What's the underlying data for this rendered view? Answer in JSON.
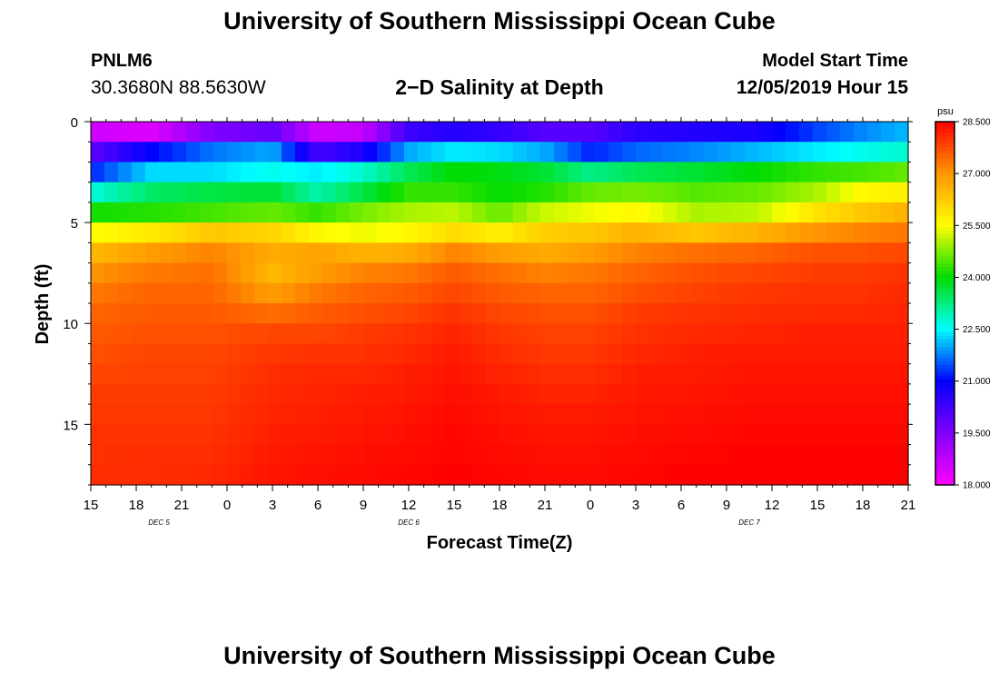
{
  "header": {
    "title": "University of Southern Mississippi Ocean Cube",
    "station_id": "PNLM6",
    "coords": "30.3680N 88.5630W",
    "chart_title": "2−D Salinity at Depth",
    "model_start_label": "Model Start Time",
    "model_start_value": "12/05/2019 Hour 15"
  },
  "footer": {
    "title": "University of Southern Mississippi Ocean Cube"
  },
  "chart_data": {
    "type": "heatmap",
    "title": "2−D Salinity at Depth",
    "xlabel": "Forecast Time(Z)",
    "ylabel": "Depth (ft)",
    "x_hours": [
      0,
      54
    ],
    "x_tick_labels": [
      "15",
      "18",
      "21",
      "0",
      "3",
      "6",
      "9",
      "12",
      "15",
      "18",
      "21",
      "0",
      "3",
      "6",
      "9",
      "12",
      "15",
      "18",
      "21"
    ],
    "date_labels": [
      {
        "label": "DEC 5",
        "hour": 4.5
      },
      {
        "label": "DEC 6",
        "hour": 21
      },
      {
        "label": "DEC 7",
        "hour": 43.5
      }
    ],
    "ylim": [
      18,
      0
    ],
    "y_ticks": [
      0,
      5,
      10,
      15
    ],
    "z_layers": 18,
    "colorbar": {
      "unit": "psu",
      "min": 18.0,
      "max": 28.5,
      "tick_labels": [
        "18.000",
        "19.500",
        "21.000",
        "22.500",
        "24.000",
        "25.500",
        "27.000",
        "28.500"
      ]
    },
    "salinity_profiles": [
      {
        "hour": 0,
        "values": [
          18.6,
          19.9,
          21.2,
          22.7,
          24.1,
          25.5,
          26.5,
          27.0,
          27.3,
          27.5,
          27.6,
          27.7,
          27.8,
          27.9,
          27.95,
          28.0,
          28.0,
          28.05
        ]
      },
      {
        "hour": 4,
        "values": [
          18.4,
          21.0,
          22.3,
          23.4,
          24.2,
          25.8,
          26.9,
          27.3,
          27.5,
          27.6,
          27.7,
          27.8,
          27.85,
          27.9,
          27.95,
          28.0,
          28.05,
          28.05
        ]
      },
      {
        "hour": 8,
        "values": [
          19.5,
          21.7,
          22.3,
          23.6,
          24.4,
          26.3,
          27.2,
          27.4,
          27.5,
          27.6,
          27.7,
          27.8,
          27.85,
          27.9,
          27.95,
          28.0,
          28.05,
          28.1
        ]
      },
      {
        "hour": 12,
        "values": [
          19.8,
          22.0,
          22.6,
          23.7,
          24.6,
          26.1,
          26.7,
          26.5,
          26.9,
          27.4,
          27.8,
          27.95,
          28.05,
          28.1,
          28.15,
          28.2,
          28.25,
          28.3
        ]
      },
      {
        "hour": 15,
        "values": [
          18.6,
          20.2,
          22.4,
          23.0,
          24.3,
          25.6,
          26.8,
          26.9,
          27.3,
          27.6,
          27.8,
          28.0,
          28.1,
          28.15,
          28.2,
          28.25,
          28.3,
          28.35
        ]
      },
      {
        "hour": 18,
        "values": [
          18.7,
          20.7,
          22.8,
          23.6,
          24.7,
          25.4,
          26.6,
          27.2,
          27.5,
          27.7,
          27.9,
          28.0,
          28.1,
          28.2,
          28.25,
          28.3,
          28.35,
          28.4
        ]
      },
      {
        "hour": 21,
        "values": [
          20.3,
          22.0,
          23.5,
          24.3,
          25.0,
          25.6,
          26.7,
          27.3,
          27.6,
          27.8,
          28.0,
          28.1,
          28.2,
          28.25,
          28.3,
          28.35,
          28.4,
          28.45
        ]
      },
      {
        "hour": 24,
        "values": [
          20.6,
          22.4,
          24.0,
          24.3,
          25.1,
          26.0,
          27.2,
          27.6,
          27.8,
          28.0,
          28.15,
          28.25,
          28.3,
          28.35,
          28.4,
          28.45,
          28.45,
          28.5
        ]
      },
      {
        "hour": 27,
        "values": [
          20.4,
          22.3,
          23.9,
          24.0,
          24.6,
          25.7,
          26.9,
          27.4,
          27.6,
          27.8,
          27.95,
          28.05,
          28.15,
          28.25,
          28.3,
          28.35,
          28.4,
          28.45
        ]
      },
      {
        "hour": 30,
        "values": [
          20.0,
          22.0,
          23.7,
          24.2,
          25.2,
          26.2,
          26.7,
          27.2,
          27.5,
          27.7,
          27.85,
          27.95,
          28.05,
          28.15,
          28.25,
          28.3,
          28.35,
          28.4
        ]
      },
      {
        "hour": 33,
        "values": [
          20.0,
          21.2,
          23.2,
          24.6,
          25.4,
          26.3,
          26.9,
          27.3,
          27.5,
          27.7,
          27.85,
          27.95,
          28.05,
          28.15,
          28.25,
          28.3,
          28.35,
          28.4
        ]
      },
      {
        "hour": 36,
        "values": [
          20.5,
          21.6,
          23.5,
          24.7,
          25.6,
          26.6,
          27.2,
          27.5,
          27.7,
          27.9,
          28.0,
          28.1,
          28.2,
          28.25,
          28.3,
          28.35,
          28.4,
          28.45
        ]
      },
      {
        "hour": 40,
        "values": [
          20.6,
          21.8,
          23.7,
          24.5,
          25.0,
          26.3,
          27.4,
          27.7,
          27.85,
          28.0,
          28.1,
          28.2,
          28.25,
          28.3,
          28.35,
          28.4,
          28.45,
          28.5
        ]
      },
      {
        "hour": 44,
        "values": [
          20.7,
          22.1,
          24.0,
          24.6,
          25.1,
          26.6,
          27.5,
          27.8,
          27.95,
          28.05,
          28.15,
          28.25,
          28.3,
          28.35,
          28.4,
          28.45,
          28.5,
          28.5
        ]
      },
      {
        "hour": 48,
        "values": [
          21.4,
          22.4,
          24.3,
          25.0,
          25.9,
          27.0,
          27.7,
          27.9,
          28.0,
          28.1,
          28.2,
          28.25,
          28.3,
          28.35,
          28.4,
          28.45,
          28.5,
          28.5
        ]
      },
      {
        "hour": 51,
        "values": [
          21.8,
          22.6,
          24.4,
          25.6,
          26.3,
          27.2,
          27.7,
          27.9,
          28.0,
          28.1,
          28.2,
          28.25,
          28.3,
          28.35,
          28.4,
          28.45,
          28.5,
          28.5
        ]
      },
      {
        "hour": 54,
        "values": [
          22.1,
          22.8,
          24.6,
          25.7,
          26.6,
          27.3,
          27.8,
          28.0,
          28.1,
          28.15,
          28.2,
          28.25,
          28.3,
          28.35,
          28.4,
          28.45,
          28.5,
          28.5
        ]
      }
    ]
  }
}
